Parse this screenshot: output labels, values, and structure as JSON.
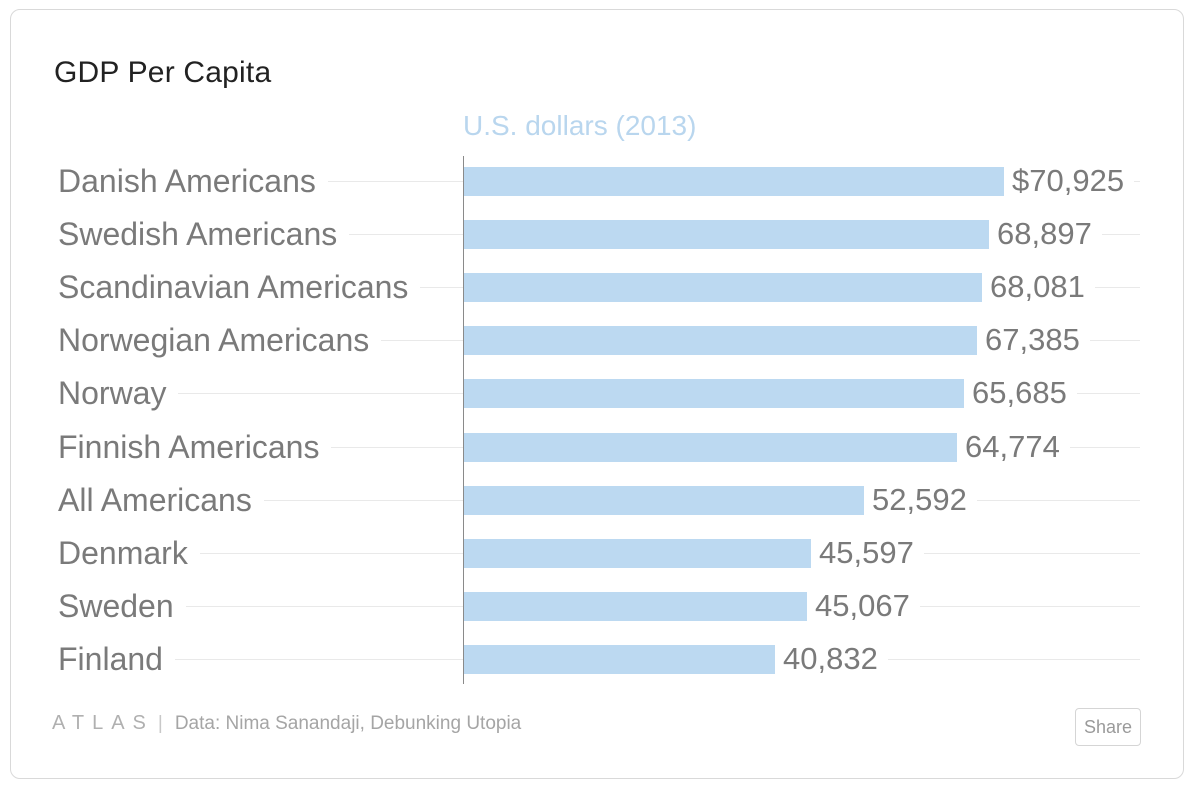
{
  "footer": {
    "logo": "ATLAS",
    "separator": "|",
    "source": "Data: Nima Sanandaji, Debunking Utopia",
    "share_label": "Share"
  },
  "colors": {
    "bar": "#bcd9f1",
    "unit": "#b9d6ee",
    "text": "#7a7a7a"
  },
  "chart_data": {
    "type": "bar",
    "orientation": "horizontal",
    "title": "GDP Per Capita",
    "subtitle": "U.S. dollars (2013)",
    "categories": [
      "Danish Americans",
      "Swedish Americans",
      "Scandinavian Americans",
      "Norwegian Americans",
      "Norway",
      "Finnish Americans",
      "All Americans",
      "Denmark",
      "Sweden",
      "Finland"
    ],
    "values": [
      70925,
      68897,
      68081,
      67385,
      65685,
      64774,
      52592,
      45597,
      45067,
      40832
    ],
    "value_labels": [
      "$70,925",
      "68,897",
      "68,081",
      "67,385",
      "65,685",
      "64,774",
      "52,592",
      "45,597",
      "45,067",
      "40,832"
    ],
    "xlim": [
      0,
      70925
    ]
  }
}
